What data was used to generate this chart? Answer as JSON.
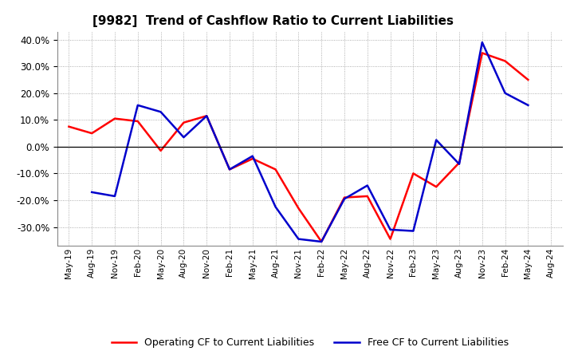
{
  "title": "[9982]  Trend of Cashflow Ratio to Current Liabilities",
  "x_labels": [
    "May-19",
    "Aug-19",
    "Nov-19",
    "Feb-20",
    "May-20",
    "Aug-20",
    "Nov-20",
    "Feb-21",
    "May-21",
    "Aug-21",
    "Nov-21",
    "Feb-22",
    "May-22",
    "Aug-22",
    "Nov-22",
    "Feb-23",
    "May-23",
    "Aug-23",
    "Nov-23",
    "Feb-24",
    "May-24",
    "Aug-24"
  ],
  "operating_cf": [
    7.5,
    5.0,
    10.5,
    9.5,
    -1.5,
    9.0,
    11.5,
    -8.5,
    -4.5,
    -8.5,
    -23.0,
    -35.5,
    -19.0,
    -18.5,
    -34.5,
    -10.0,
    -15.0,
    -6.0,
    35.0,
    32.0,
    25.0,
    null
  ],
  "free_cf": [
    null,
    -17.0,
    -18.5,
    15.5,
    13.0,
    3.5,
    11.5,
    -8.5,
    -3.5,
    -22.5,
    -34.5,
    -35.5,
    -19.5,
    -14.5,
    -31.0,
    -31.5,
    2.5,
    -6.5,
    39.0,
    20.0,
    15.5,
    null
  ],
  "operating_color": "#ff0000",
  "free_color": "#0000cc",
  "ylim": [
    -37,
    43
  ],
  "yticks": [
    -30,
    -20,
    -10,
    0,
    10,
    20,
    30,
    40
  ],
  "background_color": "#ffffff",
  "plot_bg_color": "#ffffff",
  "grid_color": "#aaaaaa",
  "legend_op": "Operating CF to Current Liabilities",
  "legend_free": "Free CF to Current Liabilities"
}
